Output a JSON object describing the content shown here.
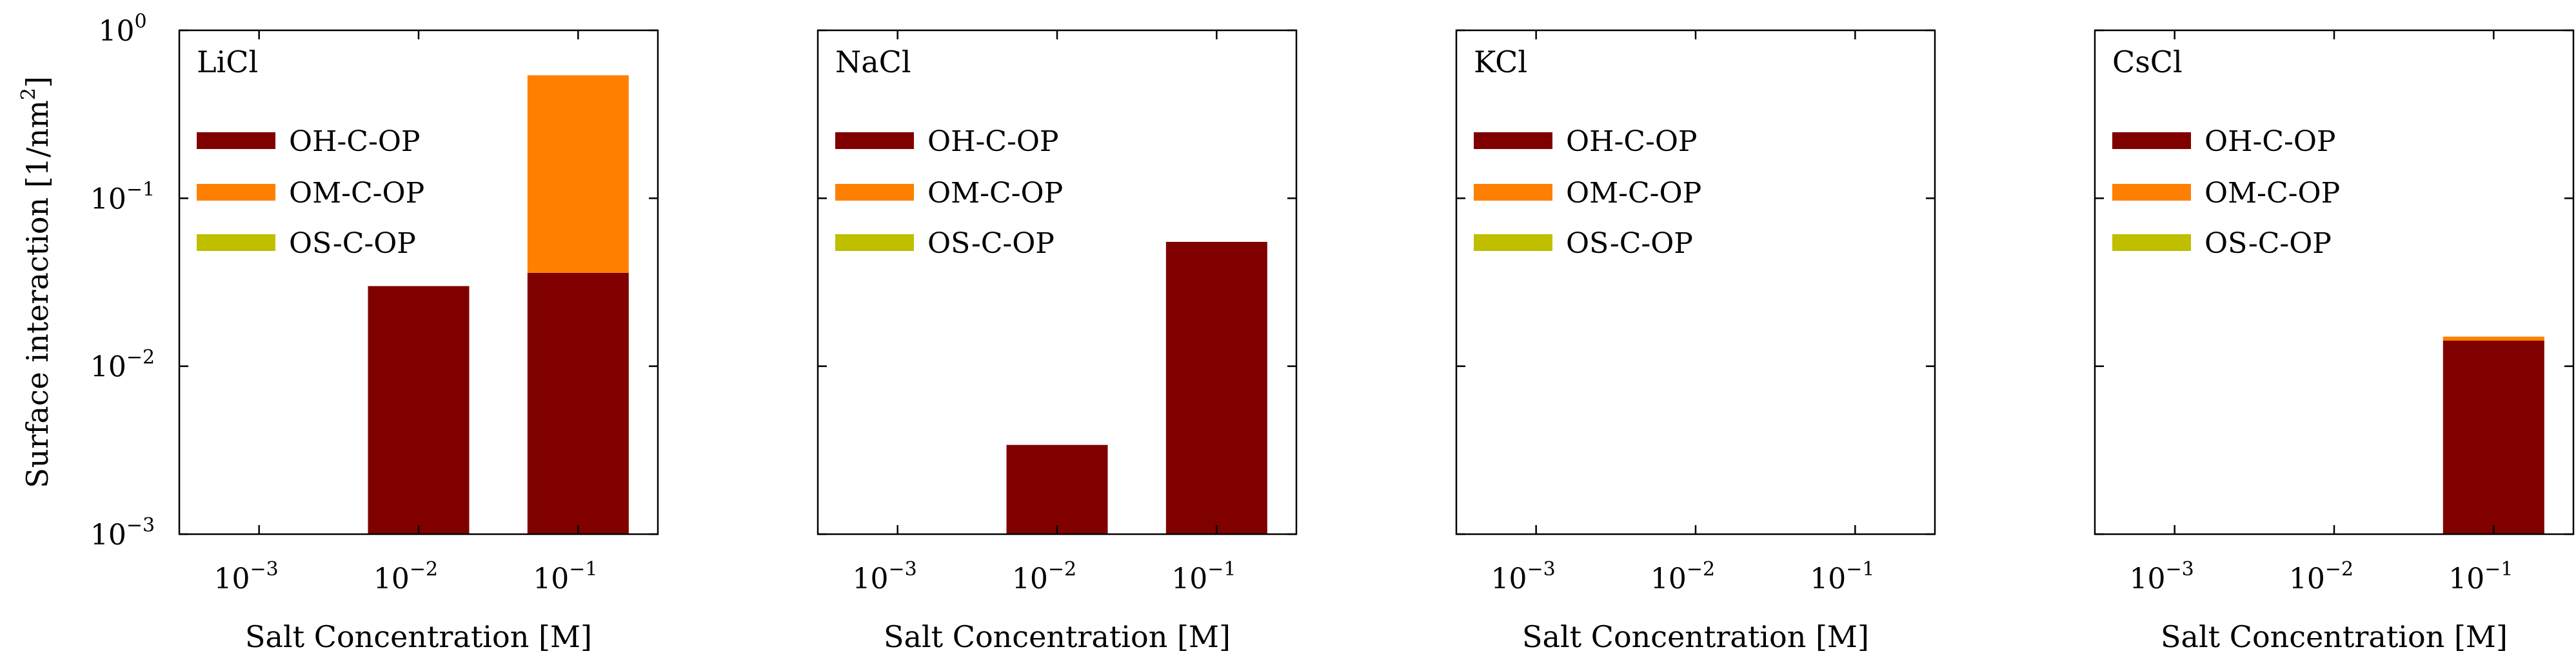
{
  "chart_data": {
    "type": "bar",
    "stacked": true,
    "yscale": "log",
    "ylim": [
      0.001,
      1
    ],
    "ylabel": "Surface interaction [1/nm²]",
    "y_ticks": [
      {
        "base": "10",
        "exp": "−3",
        "value": 0.001
      },
      {
        "base": "10",
        "exp": "−2",
        "value": 0.01
      },
      {
        "base": "10",
        "exp": "−1",
        "value": 0.1
      },
      {
        "base": "10",
        "exp": "0",
        "value": 1
      }
    ],
    "xlabel": "Salt Concentration [M]",
    "categories": [
      {
        "base": "10",
        "exp": "−3"
      },
      {
        "base": "10",
        "exp": "−2"
      },
      {
        "base": "10",
        "exp": "−1"
      }
    ],
    "series_names": [
      "OH-C-OP",
      "OM-C-OP",
      "OS-C-OP"
    ],
    "colors": {
      "OH-C-OP": "#800000",
      "OM-C-OP": "#ff8000",
      "OS-C-OP": "#bfbf00"
    },
    "panels": [
      {
        "title": "LiCl",
        "series": [
          {
            "name": "OH-C-OP",
            "values": [
              0,
              0.03,
              0.036
            ]
          },
          {
            "name": "OM-C-OP",
            "values": [
              0,
              0,
              0.504
            ]
          },
          {
            "name": "OS-C-OP",
            "values": [
              0,
              0,
              0
            ]
          }
        ]
      },
      {
        "title": "NaCl",
        "series": [
          {
            "name": "OH-C-OP",
            "values": [
              0,
              0.0034,
              0.055
            ]
          },
          {
            "name": "OM-C-OP",
            "values": [
              0,
              0,
              0
            ]
          },
          {
            "name": "OS-C-OP",
            "values": [
              0,
              0,
              0
            ]
          }
        ]
      },
      {
        "title": "KCl",
        "series": [
          {
            "name": "OH-C-OP",
            "values": [
              0,
              0,
              0
            ]
          },
          {
            "name": "OM-C-OP",
            "values": [
              0,
              0,
              0
            ]
          },
          {
            "name": "OS-C-OP",
            "values": [
              0,
              0,
              0
            ]
          }
        ]
      },
      {
        "title": "CsCl",
        "series": [
          {
            "name": "OH-C-OP",
            "values": [
              0,
              0,
              0.0142
            ]
          },
          {
            "name": "OM-C-OP",
            "values": [
              0,
              0,
              0.0008
            ]
          },
          {
            "name": "OS-C-OP",
            "values": [
              0,
              0,
              0
            ]
          }
        ]
      }
    ]
  }
}
